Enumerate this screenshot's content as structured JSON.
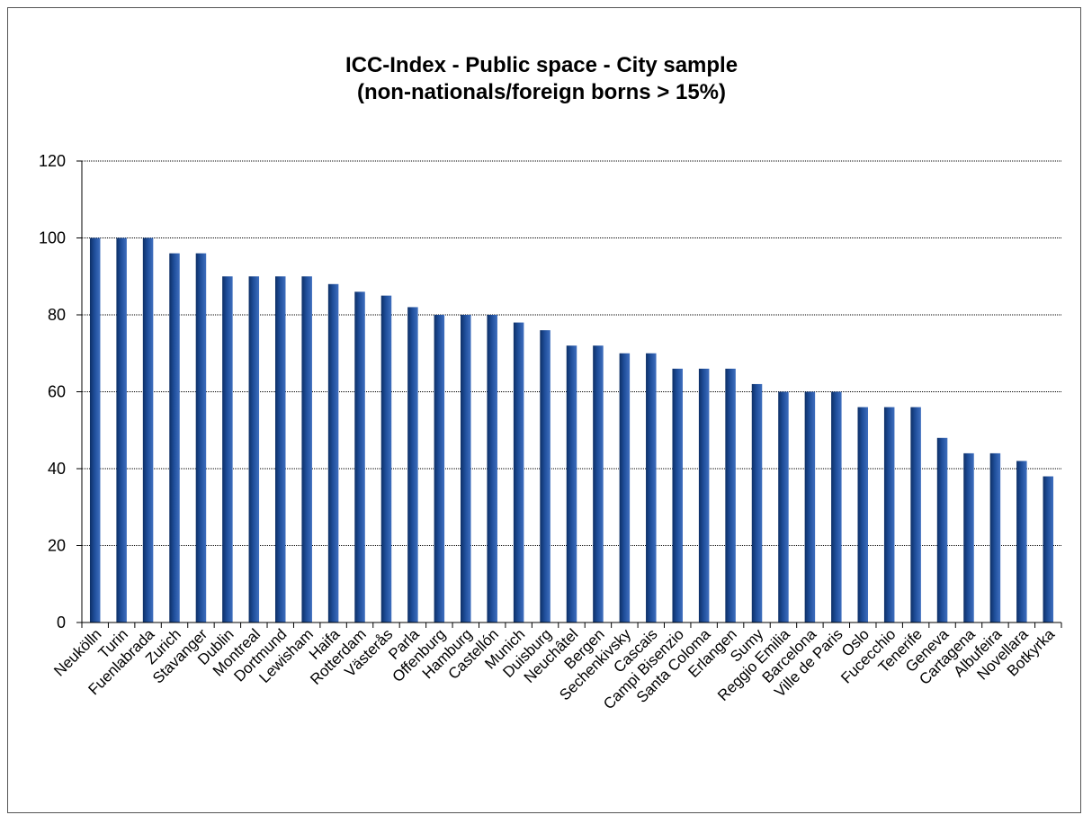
{
  "chart_data": {
    "type": "bar",
    "title_line1": "ICC-Index - Public space - City sample",
    "title_line2": "(non-nationals/foreign borns > 15%)",
    "xlabel": "",
    "ylabel": "",
    "ylim": [
      0,
      120
    ],
    "yticks": [
      0,
      20,
      40,
      60,
      80,
      100,
      120
    ],
    "grid": true,
    "legend": "none",
    "bar_color": "#1f4e9a",
    "categories": [
      "Neukölln",
      "Turin",
      "Fuenlabrada",
      "Zurich",
      "Stavanger",
      "Dublin",
      "Montreal",
      "Dortmund",
      "Lewisham",
      "Haifa",
      "Rotterdam",
      "Västerås",
      "Parla",
      "Offenburg",
      "Hamburg",
      "Castellón",
      "Munich",
      "Duisburg",
      "Neuchâtel",
      "Bergen",
      "Sechenkivsky",
      "Cascais",
      "Campi Bisenzio",
      "Santa Coloma",
      "Erlangen",
      "Sumy",
      "Reggio Emilia",
      "Barcelona",
      "Ville de Paris",
      "Oslo",
      "Fucecchio",
      "Tenerife",
      "Geneva",
      "Cartagena",
      "Albufeira",
      "Novellara",
      "Botkyrka"
    ],
    "values": [
      100,
      100,
      100,
      96,
      96,
      90,
      90,
      90,
      90,
      88,
      86,
      85,
      82,
      80,
      80,
      80,
      78,
      76,
      72,
      72,
      70,
      70,
      66,
      66,
      66,
      62,
      60,
      60,
      60,
      56,
      56,
      56,
      48,
      44,
      44,
      42,
      38
    ]
  }
}
